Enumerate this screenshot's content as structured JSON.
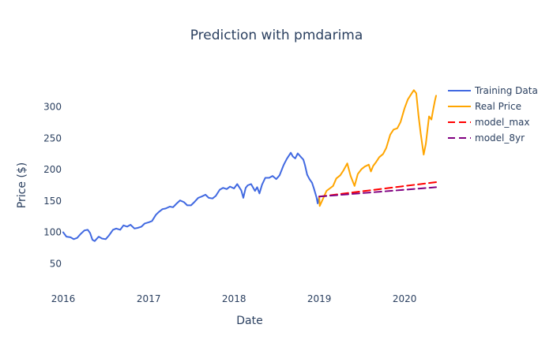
{
  "chart_data": {
    "type": "line",
    "title": "Prediction with pmdarima",
    "xlabel": "Date",
    "ylabel": "Price ($)",
    "x_type": "date",
    "xlim": [
      "2016-01-01",
      "2020-05-15"
    ],
    "ylim": [
      5,
      345
    ],
    "x_ticks": [
      {
        "date": "2016-01-01",
        "label": "2016"
      },
      {
        "date": "2017-01-01",
        "label": "2017"
      },
      {
        "date": "2018-01-01",
        "label": "2018"
      },
      {
        "date": "2019-01-01",
        "label": "2019"
      },
      {
        "date": "2020-01-01",
        "label": "2020"
      }
    ],
    "y_ticks": [
      50,
      100,
      150,
      200,
      250,
      300
    ],
    "grid": false,
    "legend_position": "top-right",
    "series": [
      {
        "name": "Training Data",
        "color": "#4169e1",
        "dash": "solid",
        "points": [
          [
            "2016-01-01",
            100
          ],
          [
            "2016-01-15",
            93
          ],
          [
            "2016-02-01",
            92
          ],
          [
            "2016-02-15",
            89
          ],
          [
            "2016-03-01",
            91
          ],
          [
            "2016-03-15",
            97
          ],
          [
            "2016-04-01",
            103
          ],
          [
            "2016-04-15",
            104
          ],
          [
            "2016-04-25",
            99
          ],
          [
            "2016-05-05",
            88
          ],
          [
            "2016-05-15",
            86
          ],
          [
            "2016-06-01",
            93
          ],
          [
            "2016-06-15",
            90
          ],
          [
            "2016-07-01",
            89
          ],
          [
            "2016-07-15",
            95
          ],
          [
            "2016-08-01",
            104
          ],
          [
            "2016-08-15",
            106
          ],
          [
            "2016-09-01",
            104
          ],
          [
            "2016-09-15",
            111
          ],
          [
            "2016-10-01",
            109
          ],
          [
            "2016-10-15",
            112
          ],
          [
            "2016-11-01",
            106
          ],
          [
            "2016-11-15",
            107
          ],
          [
            "2016-12-01",
            109
          ],
          [
            "2016-12-15",
            114
          ],
          [
            "2017-01-01",
            116
          ],
          [
            "2017-01-15",
            118
          ],
          [
            "2017-02-01",
            128
          ],
          [
            "2017-02-15",
            133
          ],
          [
            "2017-03-01",
            137
          ],
          [
            "2017-03-15",
            138
          ],
          [
            "2017-04-01",
            141
          ],
          [
            "2017-04-15",
            140
          ],
          [
            "2017-05-01",
            146
          ],
          [
            "2017-05-15",
            151
          ],
          [
            "2017-06-01",
            148
          ],
          [
            "2017-06-15",
            143
          ],
          [
            "2017-07-01",
            143
          ],
          [
            "2017-07-15",
            148
          ],
          [
            "2017-08-01",
            155
          ],
          [
            "2017-08-15",
            157
          ],
          [
            "2017-09-01",
            160
          ],
          [
            "2017-09-15",
            155
          ],
          [
            "2017-10-01",
            154
          ],
          [
            "2017-10-15",
            158
          ],
          [
            "2017-11-01",
            168
          ],
          [
            "2017-11-15",
            171
          ],
          [
            "2017-12-01",
            169
          ],
          [
            "2017-12-15",
            173
          ],
          [
            "2018-01-01",
            170
          ],
          [
            "2018-01-15",
            177
          ],
          [
            "2018-02-01",
            167
          ],
          [
            "2018-02-10",
            155
          ],
          [
            "2018-02-20",
            171
          ],
          [
            "2018-03-01",
            175
          ],
          [
            "2018-03-15",
            177
          ],
          [
            "2018-04-01",
            166
          ],
          [
            "2018-04-10",
            172
          ],
          [
            "2018-04-20",
            162
          ],
          [
            "2018-05-01",
            176
          ],
          [
            "2018-05-15",
            187
          ],
          [
            "2018-06-01",
            187
          ],
          [
            "2018-06-15",
            190
          ],
          [
            "2018-07-01",
            185
          ],
          [
            "2018-07-15",
            191
          ],
          [
            "2018-08-01",
            207
          ],
          [
            "2018-08-15",
            217
          ],
          [
            "2018-09-01",
            227
          ],
          [
            "2018-09-10",
            221
          ],
          [
            "2018-09-20",
            218
          ],
          [
            "2018-10-01",
            226
          ],
          [
            "2018-10-15",
            220
          ],
          [
            "2018-10-25",
            216
          ],
          [
            "2018-11-01",
            207
          ],
          [
            "2018-11-10",
            192
          ],
          [
            "2018-11-20",
            185
          ],
          [
            "2018-12-01",
            179
          ],
          [
            "2018-12-10",
            169
          ],
          [
            "2018-12-20",
            156
          ],
          [
            "2018-12-25",
            146
          ],
          [
            "2019-01-01",
            157
          ]
        ]
      },
      {
        "name": "Real Price",
        "color": "#ffa500",
        "dash": "solid",
        "points": [
          [
            "2019-01-01",
            157
          ],
          [
            "2019-01-03",
            142
          ],
          [
            "2019-01-15",
            152
          ],
          [
            "2019-02-01",
            166
          ],
          [
            "2019-02-15",
            170
          ],
          [
            "2019-03-01",
            174
          ],
          [
            "2019-03-15",
            186
          ],
          [
            "2019-04-01",
            191
          ],
          [
            "2019-04-15",
            199
          ],
          [
            "2019-05-01",
            210
          ],
          [
            "2019-05-15",
            190
          ],
          [
            "2019-06-01",
            174
          ],
          [
            "2019-06-15",
            193
          ],
          [
            "2019-07-01",
            201
          ],
          [
            "2019-07-15",
            205
          ],
          [
            "2019-08-01",
            208
          ],
          [
            "2019-08-10",
            197
          ],
          [
            "2019-08-20",
            206
          ],
          [
            "2019-09-01",
            212
          ],
          [
            "2019-09-15",
            220
          ],
          [
            "2019-10-01",
            225
          ],
          [
            "2019-10-15",
            235
          ],
          [
            "2019-11-01",
            256
          ],
          [
            "2019-11-15",
            264
          ],
          [
            "2019-12-01",
            266
          ],
          [
            "2019-12-15",
            276
          ],
          [
            "2020-01-01",
            298
          ],
          [
            "2020-01-15",
            312
          ],
          [
            "2020-02-01",
            322
          ],
          [
            "2020-02-10",
            327
          ],
          [
            "2020-02-20",
            322
          ],
          [
            "2020-03-01",
            286
          ],
          [
            "2020-03-10",
            258
          ],
          [
            "2020-03-23",
            224
          ],
          [
            "2020-04-01",
            241
          ],
          [
            "2020-04-15",
            285
          ],
          [
            "2020-04-25",
            280
          ],
          [
            "2020-05-01",
            293
          ],
          [
            "2020-05-10",
            310
          ],
          [
            "2020-05-15",
            318
          ]
        ]
      },
      {
        "name": "model_max",
        "color": "#ff0000",
        "dash": "dash",
        "points": [
          [
            "2019-01-01",
            157
          ],
          [
            "2020-05-15",
            180
          ]
        ]
      },
      {
        "name": "model_8yr",
        "color": "#800080",
        "dash": "dash",
        "points": [
          [
            "2019-01-01",
            157
          ],
          [
            "2020-05-15",
            172
          ]
        ]
      }
    ]
  }
}
